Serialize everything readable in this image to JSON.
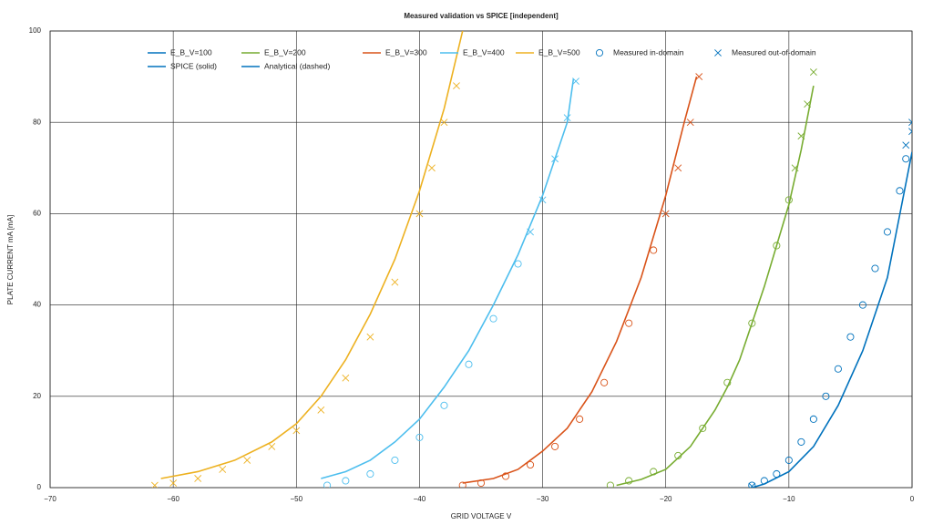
{
  "chart_data": {
    "type": "line",
    "title": "Measured validation vs SPICE [independent]",
    "xlabel": "GRID VOLTAGE V",
    "ylabel": "PLATE CURRENT mA [mA]",
    "xlim": [
      -70,
      0
    ],
    "xticks": [
      {
        "value": -70,
        "label": "−70"
      },
      {
        "value": -60,
        "label": "−60"
      },
      {
        "value": -50,
        "label": "−50"
      },
      {
        "value": -40,
        "label": "−40"
      },
      {
        "value": -30,
        "label": "−30"
      },
      {
        "value": -20,
        "label": "−20"
      },
      {
        "value": -10,
        "label": "−10"
      },
      0
    ],
    "ylim": [
      0,
      100
    ],
    "yticks": [
      0,
      20,
      40,
      60,
      80,
      100
    ],
    "grid": true,
    "legend": [
      {
        "label": "E_B_V=100",
        "color": "#0072bd",
        "symbol": "line"
      },
      {
        "label": "E_B_V=200",
        "color": "#77ac30",
        "symbol": "line"
      },
      {
        "label": "E_B_V=300",
        "color": "#d95319",
        "symbol": "line"
      },
      {
        "label": "E_B_V=400",
        "color": "#4dbeee",
        "symbol": "line"
      },
      {
        "label": "E_B_V=500",
        "color": "#edb120",
        "symbol": "line"
      },
      {
        "label": "Measured in-domain",
        "color": "#0072bd",
        "symbol": "o"
      },
      {
        "label": "Measured out-of-domain",
        "color": "#0072bd",
        "symbol": "x"
      },
      {
        "label": "SPICE (solid)",
        "color": "#0072bd",
        "symbol": "line"
      },
      {
        "label": "Analytical (dashed)",
        "color": "#0072bd",
        "symbol": "line"
      }
    ],
    "series": [
      {
        "color": "#0072bd",
        "marker": "line",
        "x": [
          -13,
          -12,
          -10,
          -8,
          -6,
          -4,
          -2,
          0
        ],
        "values": [
          0,
          0.8,
          3.5,
          9,
          18,
          30,
          46,
          73.5
        ]
      },
      {
        "color": "#77ac30",
        "marker": "line",
        "x": [
          -24,
          -22,
          -20,
          -18,
          -16,
          -15,
          -14,
          -12,
          -10,
          -9,
          -8
        ],
        "values": [
          0.5,
          1.8,
          4,
          9,
          17,
          22,
          28,
          44,
          62,
          74,
          88
        ]
      },
      {
        "color": "#d95319",
        "marker": "line",
        "x": [
          -36.5,
          -34,
          -32,
          -30,
          -28,
          -26,
          -24,
          -22,
          -20,
          -18.5,
          -17.5
        ],
        "values": [
          1,
          2,
          4,
          8,
          13,
          21,
          32,
          46,
          64,
          80,
          90
        ]
      },
      {
        "color": "#4dbeee",
        "marker": "line",
        "x": [
          -48,
          -46,
          -44,
          -42,
          -40,
          -38,
          -36,
          -34,
          -32,
          -30,
          -28,
          -27.5
        ],
        "values": [
          2,
          3.5,
          6,
          10,
          15,
          22,
          30,
          40,
          51,
          64,
          80,
          89.5
        ]
      },
      {
        "color": "#edb120",
        "marker": "line",
        "x": [
          -61,
          -58,
          -55,
          -52,
          -50,
          -48,
          -46,
          -44,
          -42,
          -40,
          -38,
          -36.5
        ],
        "values": [
          2,
          3.5,
          6,
          10,
          14,
          20,
          28,
          38,
          50,
          65,
          83,
          100
        ]
      },
      {
        "color": "#0072bd",
        "marker": "o",
        "x": [
          -13,
          -12,
          -11,
          -10,
          -9,
          -8,
          -7,
          -6,
          -5,
          -4,
          -3,
          -2,
          -1,
          -0.5
        ],
        "values": [
          0.5,
          1.5,
          3,
          6,
          10,
          15,
          20,
          26,
          33,
          40,
          48,
          56,
          65,
          72
        ]
      },
      {
        "color": "#0072bd",
        "marker": "x",
        "x": [
          -13,
          -0.5,
          0,
          0
        ],
        "values": [
          0.3,
          75,
          78,
          80
        ]
      },
      {
        "color": "#77ac30",
        "marker": "o",
        "x": [
          -24.5,
          -23,
          -21,
          -19,
          -17,
          -15,
          -13,
          -11,
          -10
        ],
        "values": [
          0.5,
          1.5,
          3.5,
          7,
          13,
          23,
          36,
          53,
          63
        ]
      },
      {
        "color": "#77ac30",
        "marker": "x",
        "x": [
          -9.5,
          -9,
          -8.5,
          -8
        ],
        "values": [
          70,
          77,
          84,
          91
        ]
      },
      {
        "color": "#d95319",
        "marker": "o",
        "x": [
          -36.5,
          -35,
          -33,
          -31,
          -29,
          -27,
          -25,
          -23,
          -21
        ],
        "values": [
          0.5,
          1,
          2.5,
          5,
          9,
          15,
          23,
          36,
          52
        ]
      },
      {
        "color": "#d95319",
        "marker": "x",
        "x": [
          -20,
          -19,
          -18,
          -17.3
        ],
        "values": [
          60,
          70,
          80,
          90
        ]
      },
      {
        "color": "#4dbeee",
        "marker": "o",
        "x": [
          -47.5,
          -46,
          -44,
          -42,
          -40,
          -38,
          -36,
          -34,
          -32
        ],
        "values": [
          0.5,
          1.5,
          3,
          6,
          11,
          18,
          27,
          37,
          49
        ]
      },
      {
        "color": "#4dbeee",
        "marker": "x",
        "x": [
          -31,
          -30,
          -29,
          -28,
          -27.3
        ],
        "values": [
          56,
          63,
          72,
          81,
          89
        ]
      },
      {
        "color": "#edb120",
        "marker": "x",
        "x": [
          -61.5,
          -60,
          -58,
          -56,
          -54,
          -52,
          -50,
          -48,
          -46,
          -44,
          -42,
          -40,
          -39,
          -38,
          -37
        ],
        "values": [
          0.5,
          1,
          2,
          4,
          6,
          9,
          12.5,
          17,
          24,
          33,
          45,
          60,
          70,
          80,
          88
        ]
      }
    ]
  }
}
